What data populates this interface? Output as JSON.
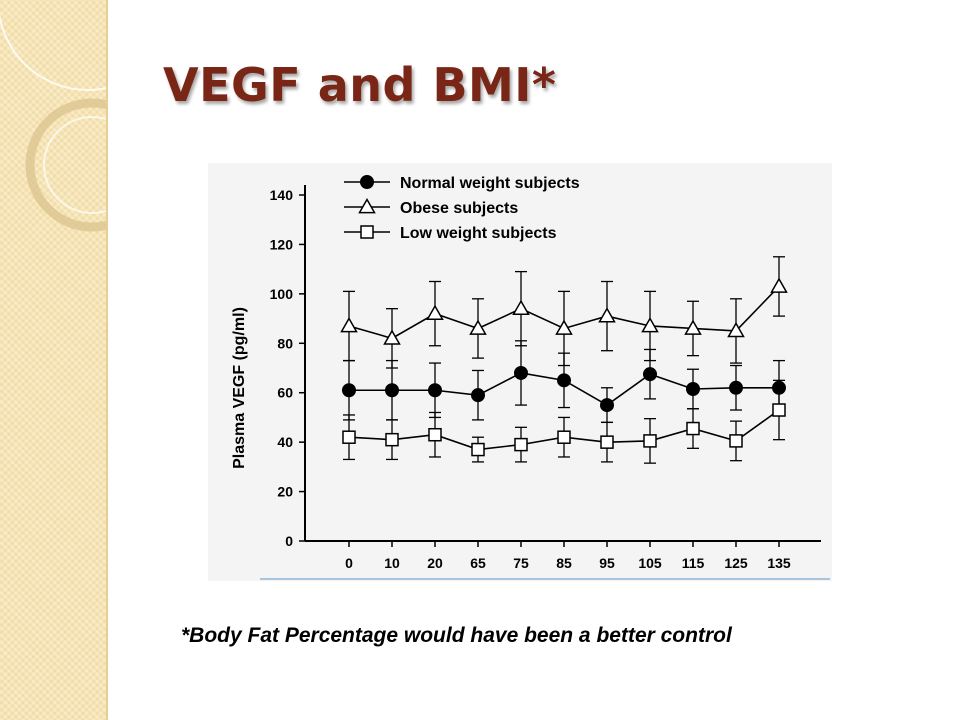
{
  "slide": {
    "title": "VEGF and BMI*",
    "footnote": "*Body Fat Percentage would have been a better control"
  },
  "colors": {
    "title": "#7a2616",
    "sidebar": "#f7e4b4",
    "ink": "#000000"
  },
  "chart_data": {
    "type": "line",
    "title": "",
    "xlabel": "",
    "ylabel": "Plasma VEGF (pg/ml)",
    "categories": [
      "0",
      "10",
      "20",
      "65",
      "75",
      "85",
      "95",
      "105",
      "115",
      "125",
      "135"
    ],
    "ylim": [
      0,
      140
    ],
    "yticks": [
      0,
      20,
      40,
      60,
      80,
      100,
      120,
      140
    ],
    "grid": false,
    "legend": "top-left",
    "series": [
      {
        "name": "Normal weight subjects",
        "marker": "filled-circle",
        "values": [
          61,
          61,
          61,
          59,
          68,
          65,
          55,
          67.5,
          61.5,
          62,
          62
        ],
        "error": [
          12,
          12,
          11,
          10,
          13,
          11,
          7,
          10,
          8,
          9,
          11
        ]
      },
      {
        "name": "Obese subjects",
        "marker": "open-triangle",
        "values": [
          87,
          82,
          92,
          86,
          94,
          86,
          91,
          87,
          86,
          85,
          103
        ],
        "error": [
          14,
          12,
          13,
          12,
          15,
          15,
          14,
          14,
          11,
          13,
          12
        ]
      },
      {
        "name": "Low weight subjects",
        "marker": "open-square",
        "values": [
          42,
          41,
          43,
          37,
          39,
          42,
          40,
          40.5,
          45.5,
          40.5,
          53
        ],
        "error": [
          9,
          8,
          9,
          5,
          7,
          8,
          8,
          9,
          8,
          8,
          12
        ]
      }
    ]
  }
}
